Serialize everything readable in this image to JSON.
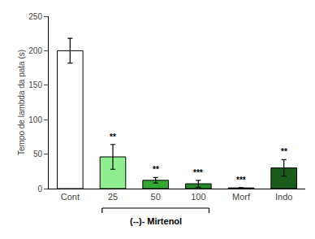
{
  "chart_data": {
    "type": "bar",
    "categories": [
      "Cont",
      "25",
      "50",
      "100",
      "Morf",
      "Indo"
    ],
    "values": [
      200,
      46,
      12,
      7,
      1,
      30
    ],
    "errors": [
      18,
      18,
      4,
      5,
      0.5,
      12
    ],
    "colors": [
      "#ffffff",
      "#90EE90",
      "#32a832",
      "#228B22",
      "#006400",
      "#1a5c1a"
    ],
    "significance": [
      null,
      "**",
      "**",
      "***",
      "***",
      "**"
    ],
    "ylabel": "Tempo de lambda da pata (s)",
    "ylim": [
      0,
      250
    ],
    "yticks": [
      0,
      50,
      100,
      150,
      200,
      250
    ],
    "grid": false,
    "bracket": {
      "label": "(--)- Mirtenol",
      "from": "25",
      "to": "100"
    }
  }
}
